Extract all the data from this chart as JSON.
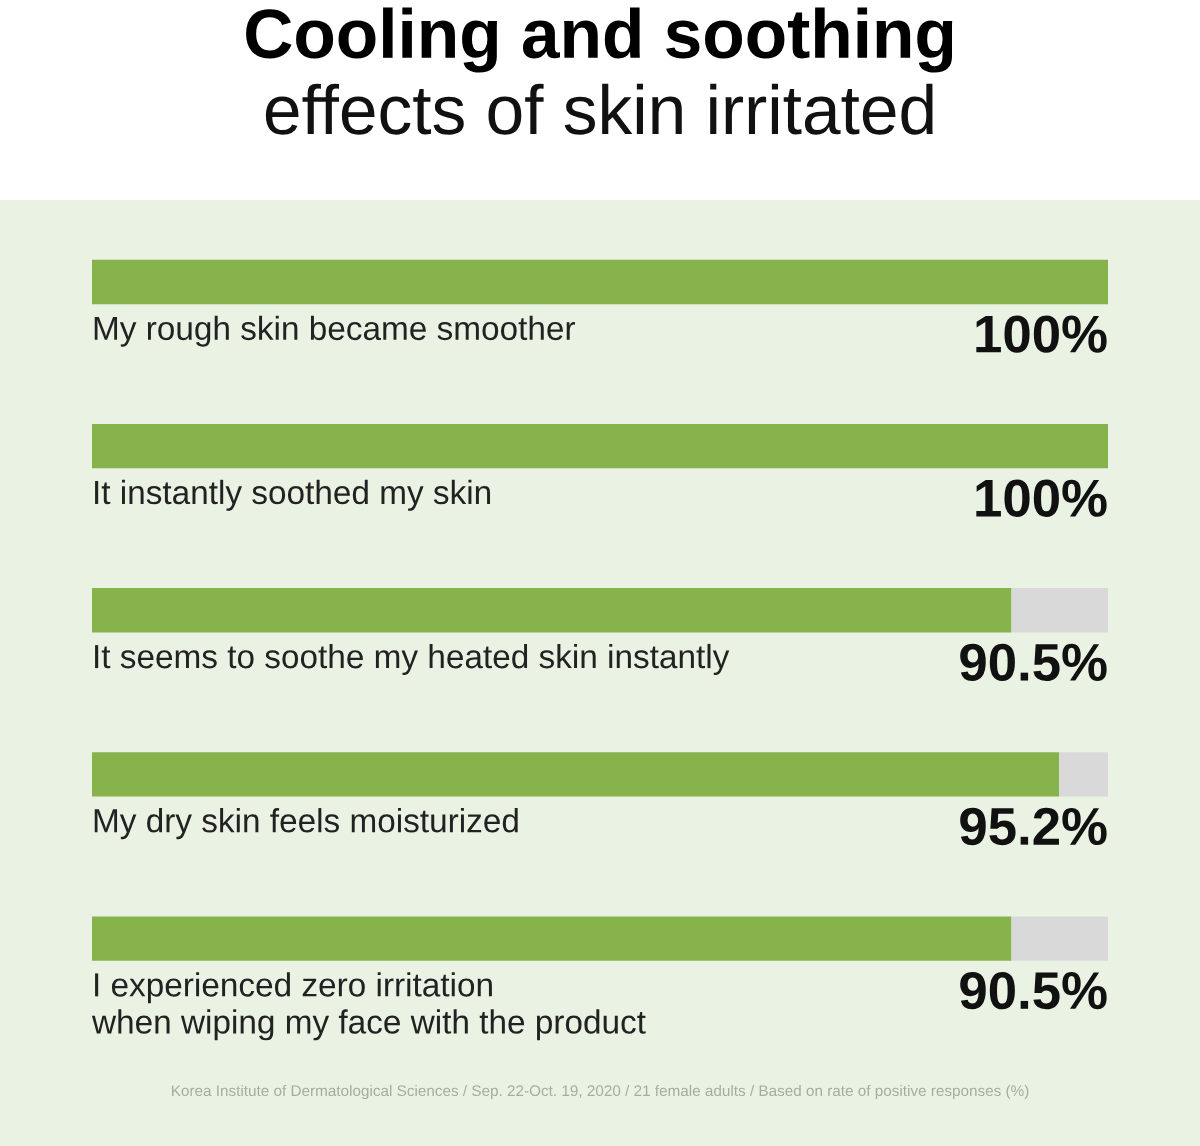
{
  "chart_data": {
    "type": "bar",
    "orientation": "horizontal",
    "stacked": true,
    "title": "Cooling and soothing",
    "subtitle": "effects of skin irritated",
    "categories": [
      "My rough skin became smoother",
      "It instantly soothed my skin",
      "It seems to soothe my heated skin instantly",
      "My dry skin feels moisturized",
      "I experienced zero irritation\nwhen wiping my face with the product"
    ],
    "series": [
      {
        "color": "#86b34b",
        "values": [
          100,
          100,
          90.5,
          95.2,
          90.5
        ],
        "value_labels": [
          "100%",
          "100%",
          "90.5%",
          "95.2%",
          "90.5%"
        ]
      },
      {
        "color": "#d9d9d9",
        "values": [
          null,
          null,
          9.5,
          4.8,
          9.5
        ]
      }
    ],
    "xlim": [
      0,
      100
    ],
    "tick_labels": false,
    "annotations": [
      "Korea Institute of Dermatological Sciences / Sep. 22-Oct. 19, 2020 / 21 female adults / Based on rate of positive responses (%)"
    ]
  }
}
